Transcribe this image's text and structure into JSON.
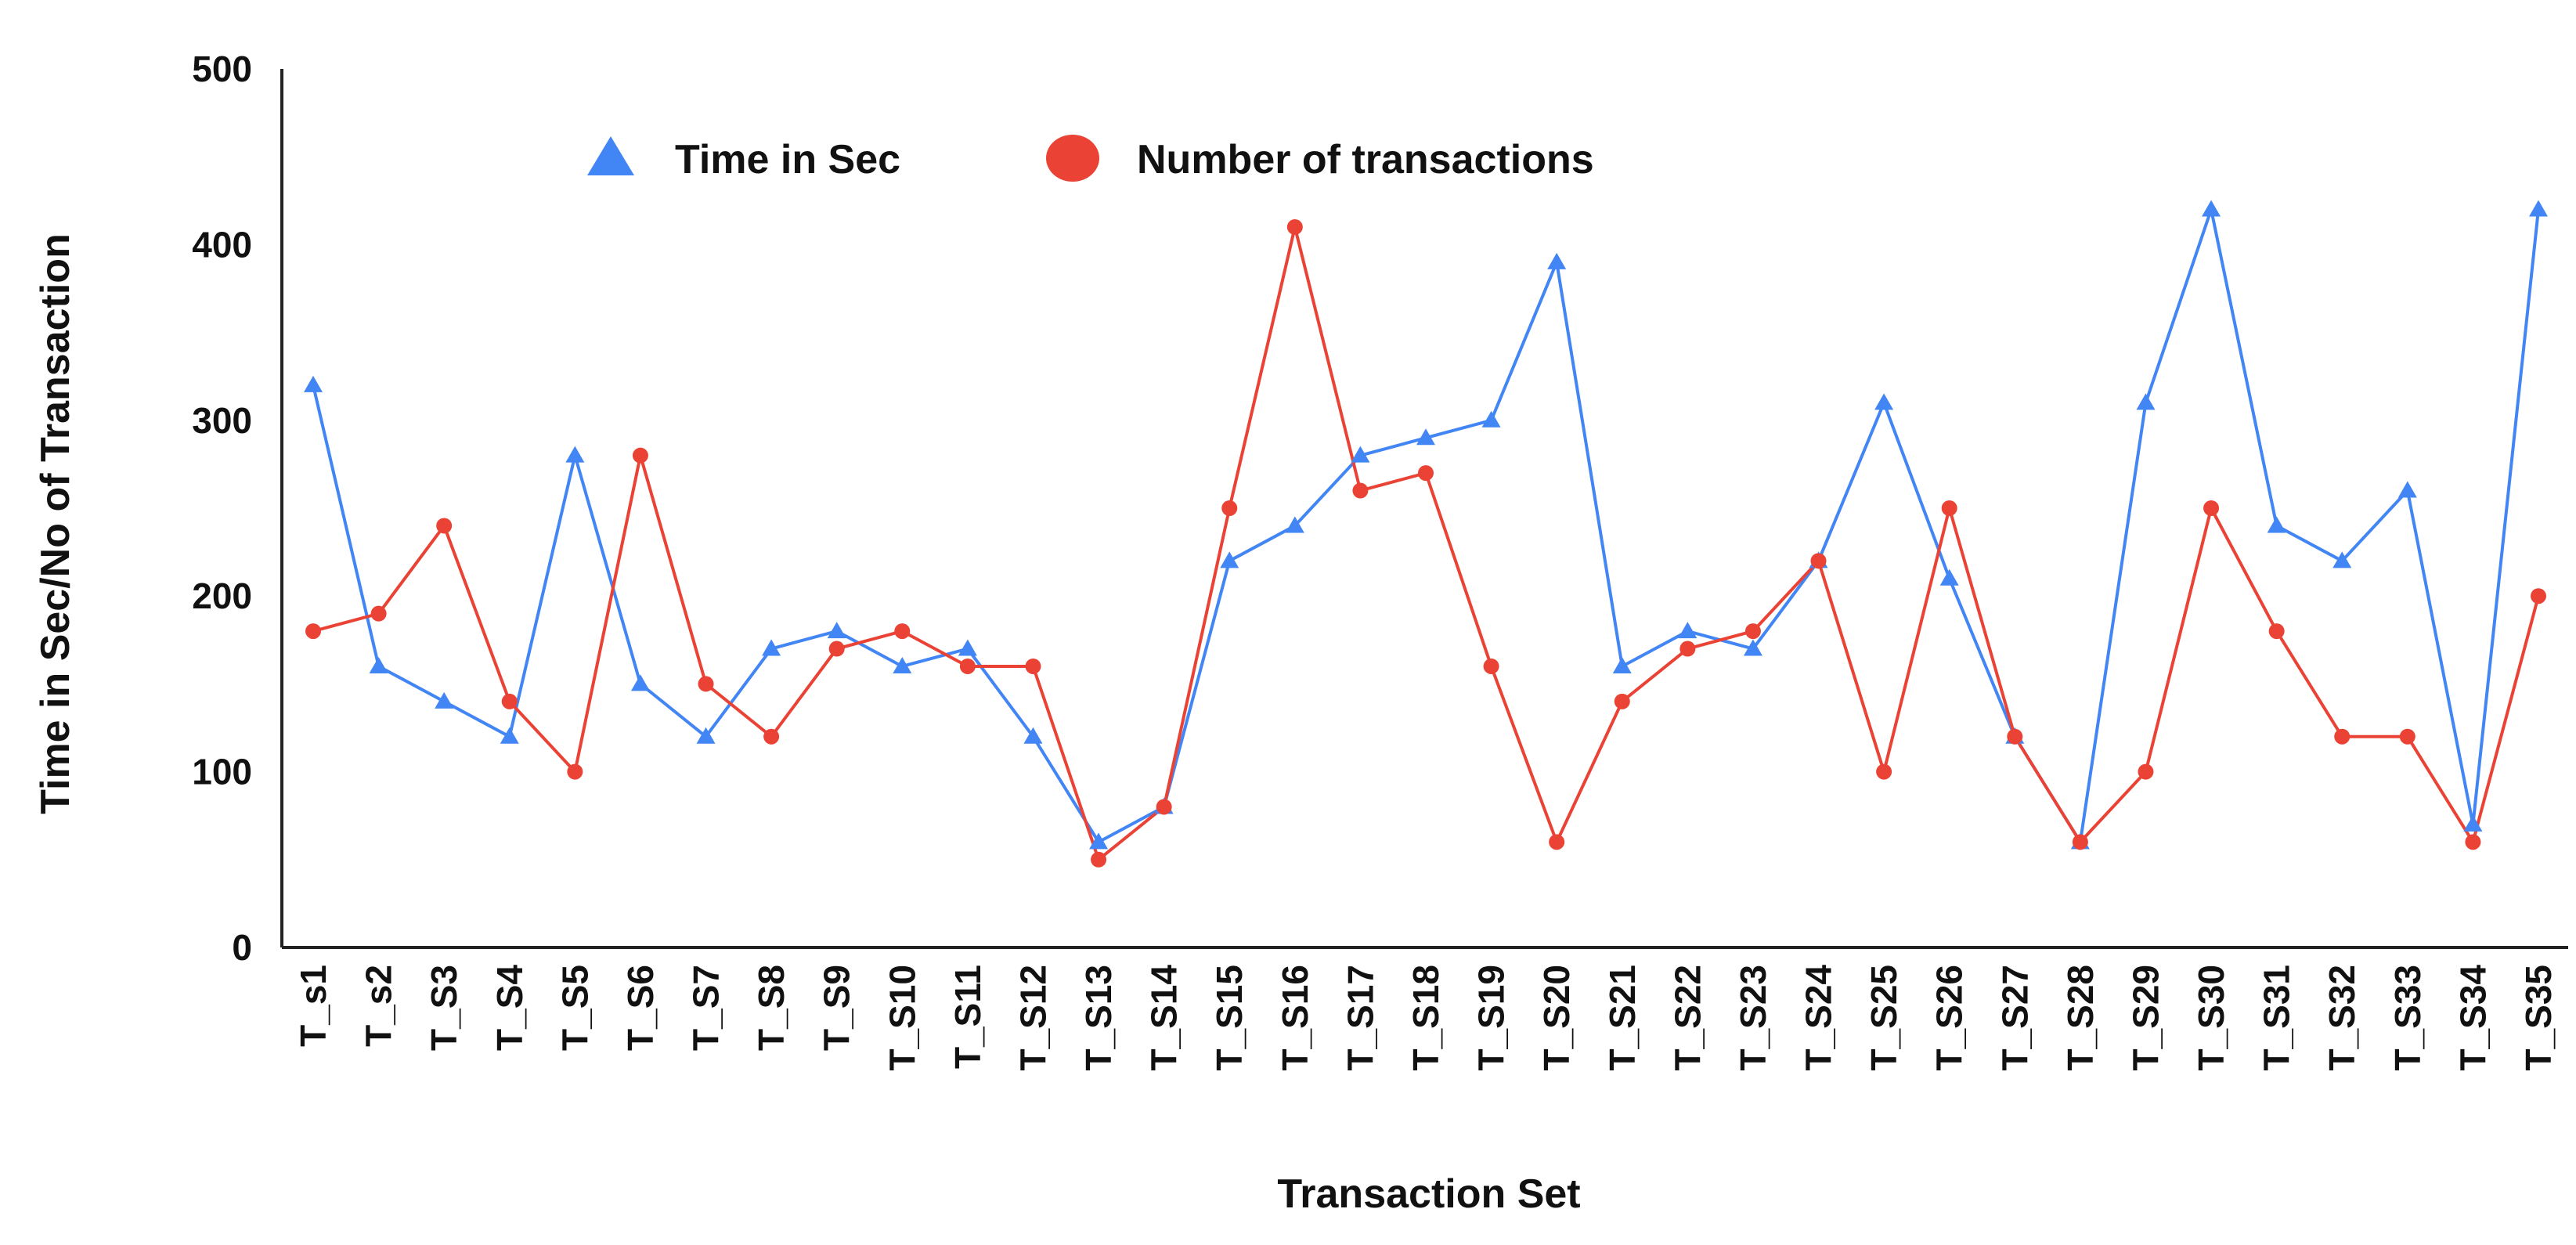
{
  "chart_data": {
    "type": "line",
    "title": "",
    "xlabel": "Transaction Set",
    "ylabel": "Time in Sec/No of Transaction",
    "ylim": [
      0,
      500
    ],
    "yticks": [
      "0",
      "100",
      "200",
      "300",
      "400",
      "500"
    ],
    "grid": false,
    "legend_position": "top",
    "categories": [
      "T_s1",
      "T_s2",
      "T_S3",
      "T_S4",
      "T_S5",
      "T_S6",
      "T_S7",
      "T_S8",
      "T_S9",
      "T_S10",
      "T_S11",
      "T_S12",
      "T_S13",
      "T_S14",
      "T_S15",
      "T_S16",
      "T_S17",
      "T_S18",
      "T_S19",
      "T_S20",
      "T_S21",
      "T_S22",
      "T_S23",
      "T_S24",
      "T_S25",
      "T_S26",
      "T_S27",
      "T_S28",
      "T_S29",
      "T_S30",
      "T_S31",
      "T_S32",
      "T_S33",
      "T_S34",
      "T_S35"
    ],
    "series": [
      {
        "name": "Time in Sec",
        "marker": "triangle",
        "color": "#4285f4",
        "values": [
          320,
          160,
          140,
          120,
          280,
          150,
          120,
          170,
          180,
          160,
          170,
          120,
          60,
          80,
          220,
          240,
          280,
          290,
          300,
          390,
          160,
          180,
          170,
          220,
          310,
          210,
          120,
          60,
          310,
          420,
          240,
          220,
          260,
          70,
          420
        ]
      },
      {
        "name": "Number of transactions",
        "marker": "circle",
        "color": "#ea4335",
        "values": [
          180,
          190,
          240,
          140,
          100,
          280,
          150,
          120,
          170,
          180,
          160,
          160,
          50,
          80,
          250,
          410,
          260,
          270,
          160,
          60,
          140,
          170,
          180,
          220,
          100,
          250,
          120,
          60,
          100,
          250,
          180,
          120,
          120,
          60,
          200
        ]
      }
    ]
  }
}
